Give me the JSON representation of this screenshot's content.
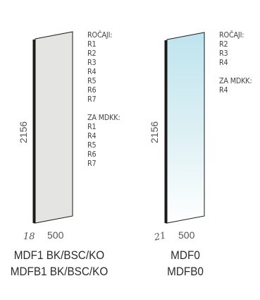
{
  "panels": [
    {
      "height_label": "2156",
      "width_label": "500",
      "depth_label": "18",
      "handles_heading": "ROČAJI:",
      "handles": [
        "R1",
        "R2",
        "R3",
        "R4",
        "R5",
        "R6",
        "R7"
      ],
      "mdkk_heading": "ZA MDKK:",
      "mdkk": [
        "R1",
        "R4",
        "R5",
        "R6",
        "R7"
      ],
      "caption": [
        "MDF1 BK/BSC/KO",
        "MDFB1 BK/BSC/KO"
      ],
      "fill_color": "#e4e5e2"
    },
    {
      "height_label": "2156",
      "width_label": "500",
      "depth_label": "21",
      "handles_heading": "ROČAJI:",
      "handles": [
        "R2",
        "R3",
        "R4"
      ],
      "mdkk_heading": "ZA MDKK:",
      "mdkk": [
        "R4"
      ],
      "caption": [
        "MDF0",
        "MDFB0"
      ],
      "fill_color_top": "#bfe4ee",
      "fill_color_bottom": "#ffffff"
    }
  ]
}
